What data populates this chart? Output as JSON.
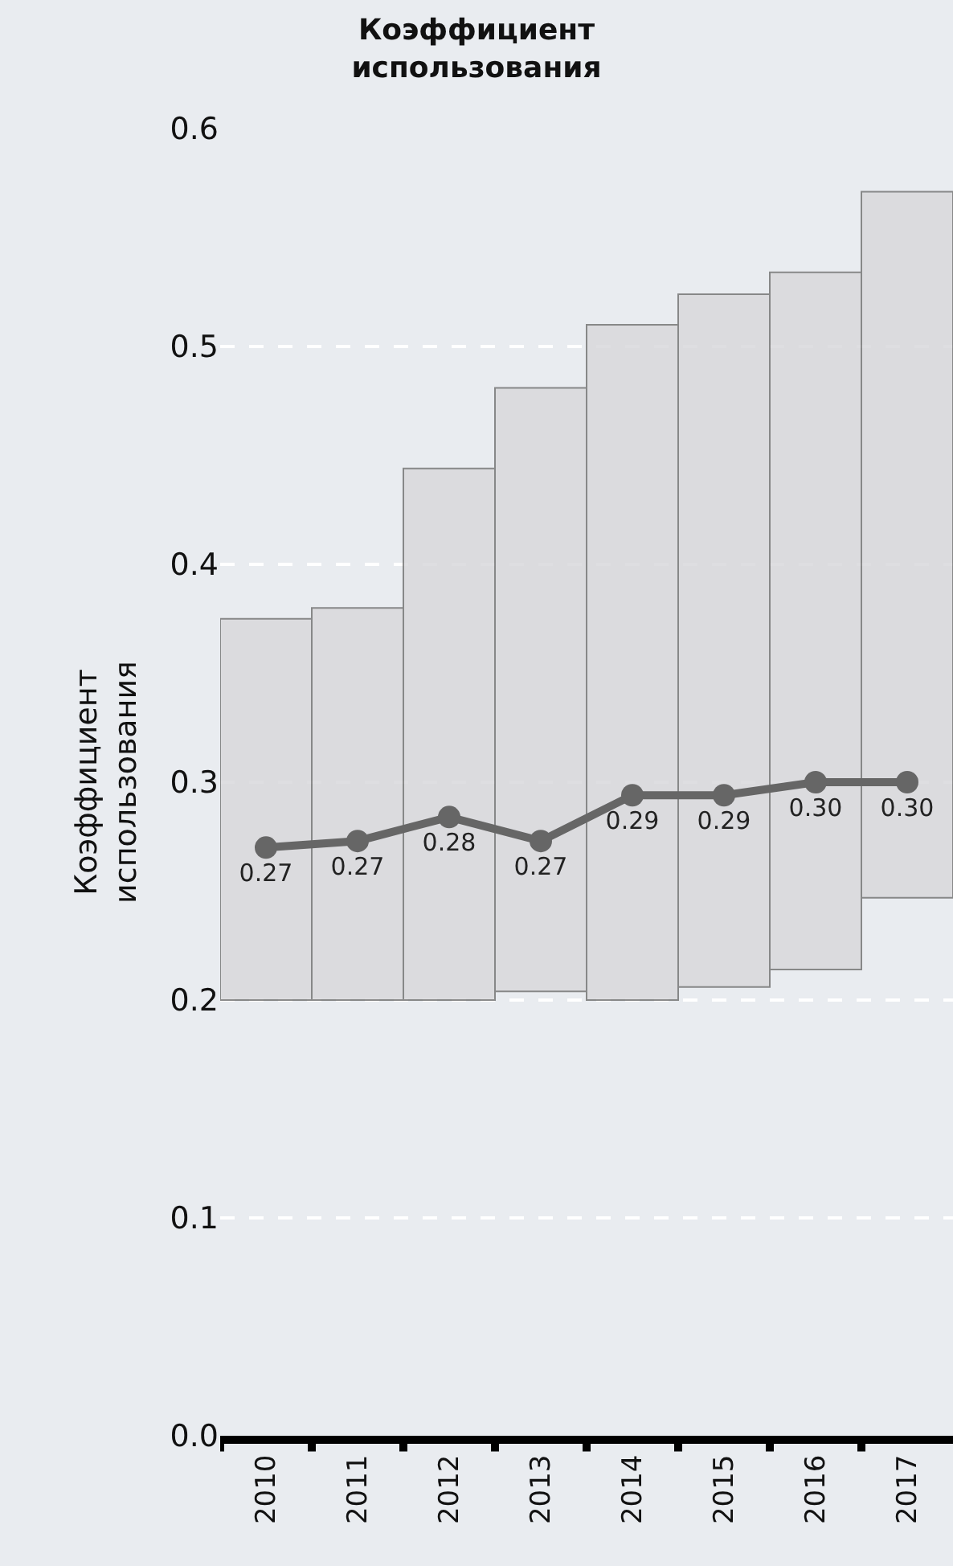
{
  "chart_data": {
    "type": "bar",
    "title": "Коэффициент\nиспользования",
    "ylabel": "Коэффициент\nиспользования",
    "categories": [
      "2010",
      "2011",
      "2012",
      "2013",
      "2014",
      "2015",
      "2016",
      "2017"
    ],
    "series": [
      {
        "color": "#d9d9dc",
        "base": [
          0.2,
          0.2,
          0.2,
          0.204,
          0.2,
          0.206,
          0.214,
          0.247
        ],
        "values": [
          0.175,
          0.18,
          0.244,
          0.277,
          0.31,
          0.318,
          0.32,
          0.324
        ]
      },
      {
        "type": "line",
        "color": "#666666",
        "marker": "circle",
        "line_style": "solid",
        "values": [
          0.27,
          0.273,
          0.284,
          0.273,
          0.294,
          0.294,
          0.3,
          0.3
        ],
        "value_labels": [
          "0.27",
          "0.27",
          "0.28",
          "0.27",
          "0.29",
          "0.29",
          "0.30",
          "0.30"
        ]
      }
    ],
    "ylim": [
      0,
      0.6
    ],
    "yticks": [
      {
        "value": 0,
        "label": "0.0"
      },
      0.1,
      0.2,
      0.3,
      0.4,
      0.5,
      0.6
    ],
    "grid": "y"
  }
}
